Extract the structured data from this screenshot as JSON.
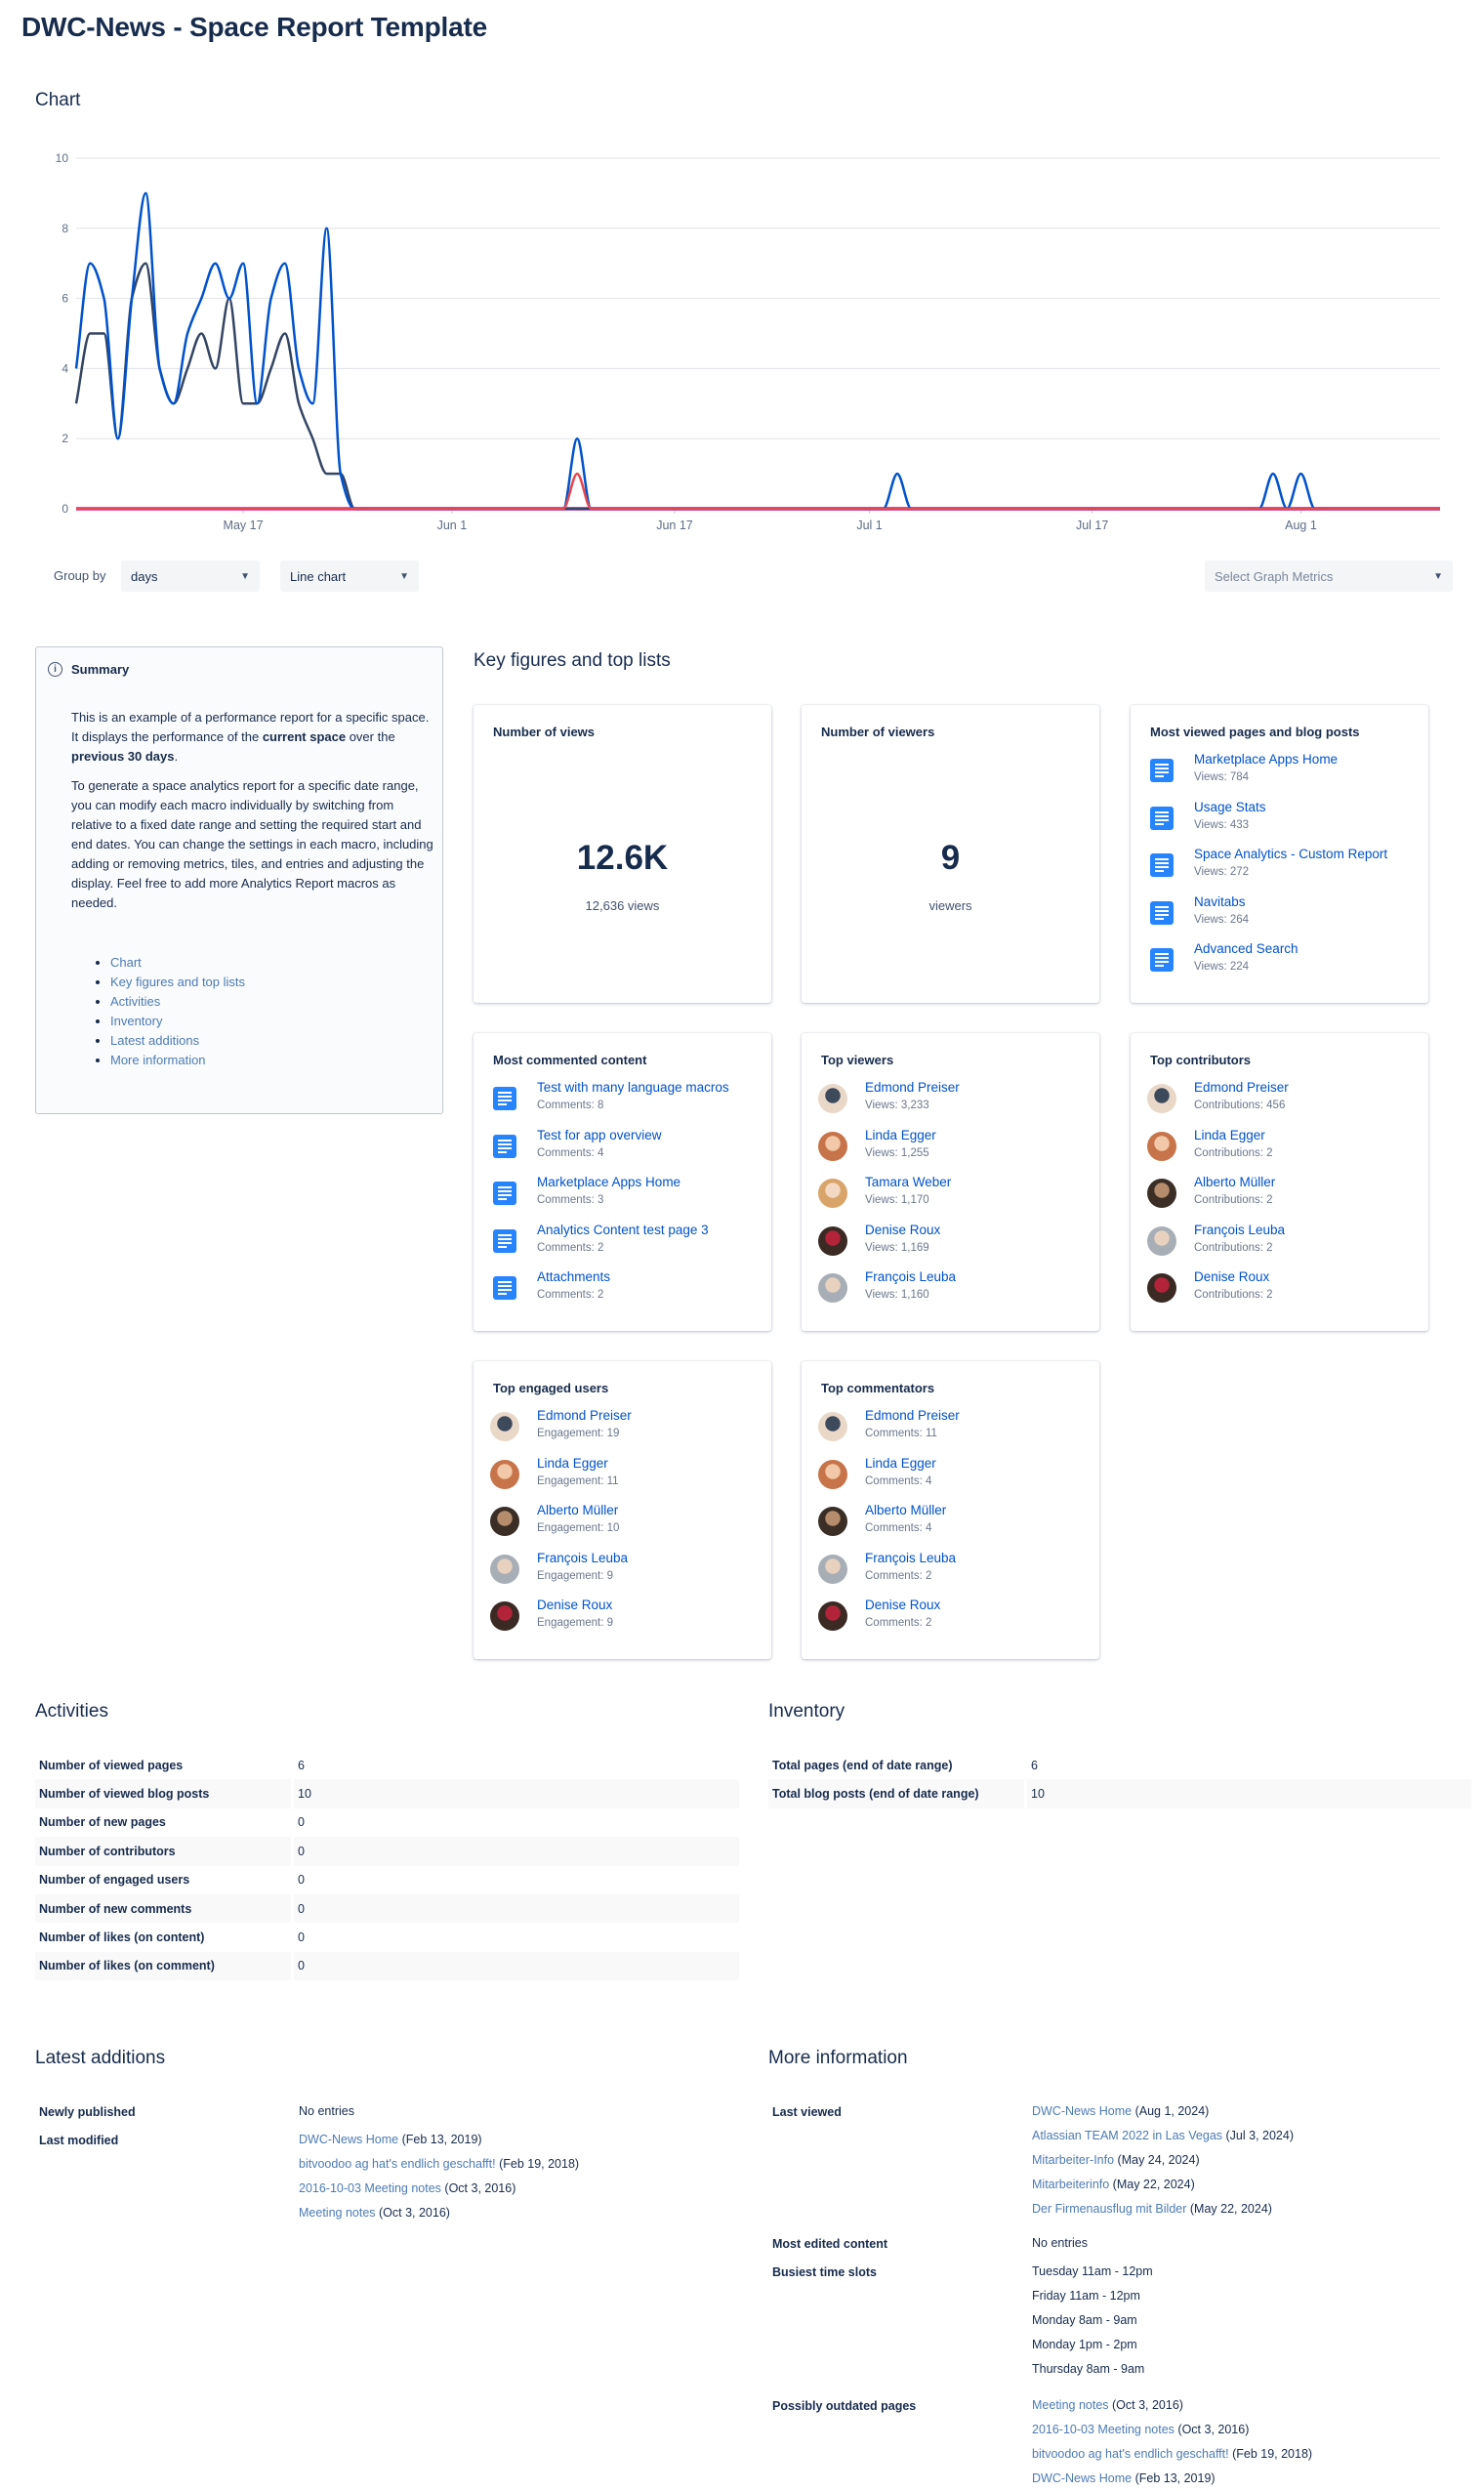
{
  "page": {
    "title": "DWC-News - Space Report Template"
  },
  "chart_section": {
    "heading": "Chart"
  },
  "chart_data": {
    "type": "line",
    "title": "",
    "xlabel": "",
    "ylabel": "",
    "ylim": [
      0,
      10
    ],
    "yticks": [
      "0",
      "2",
      "4",
      "6",
      "8",
      "10"
    ],
    "xlim": [
      "2024-05-05",
      "2024-08-11"
    ],
    "xticks": [
      {
        "date": "2024-05-17",
        "label": "May 17"
      },
      {
        "date": "2024-06-01",
        "label": "Jun 1"
      },
      {
        "date": "2024-06-17",
        "label": "Jun 17"
      },
      {
        "date": "2024-07-01",
        "label": "Jul 1"
      },
      {
        "date": "2024-07-17",
        "label": "Jul 17"
      },
      {
        "date": "2024-08-01",
        "label": "Aug 1"
      }
    ],
    "grid": true,
    "legend": "none",
    "series": [
      {
        "color": "#0052cc",
        "points": [
          [
            "2024-05-05",
            4
          ],
          [
            "2024-05-06",
            7
          ],
          [
            "2024-05-07",
            6
          ],
          [
            "2024-05-08",
            2
          ],
          [
            "2024-05-09",
            6
          ],
          [
            "2024-05-10",
            9
          ],
          [
            "2024-05-11",
            4
          ],
          [
            "2024-05-12",
            3
          ],
          [
            "2024-05-13",
            5
          ],
          [
            "2024-05-14",
            6
          ],
          [
            "2024-05-15",
            7
          ],
          [
            "2024-05-16",
            6
          ],
          [
            "2024-05-17",
            7
          ],
          [
            "2024-05-18",
            3
          ],
          [
            "2024-05-19",
            6
          ],
          [
            "2024-05-20",
            7
          ],
          [
            "2024-05-21",
            4
          ],
          [
            "2024-05-22",
            3
          ],
          [
            "2024-05-23",
            8
          ],
          [
            "2024-05-24",
            1
          ],
          [
            "2024-05-25",
            0
          ],
          [
            "2024-06-09",
            0
          ],
          [
            "2024-06-10",
            2
          ],
          [
            "2024-06-11",
            0
          ],
          [
            "2024-07-02",
            0
          ],
          [
            "2024-07-03",
            1
          ],
          [
            "2024-07-04",
            0
          ],
          [
            "2024-07-29",
            0
          ],
          [
            "2024-07-30",
            1
          ],
          [
            "2024-07-31",
            0
          ],
          [
            "2024-08-01",
            1
          ],
          [
            "2024-08-02",
            0
          ],
          [
            "2024-08-11",
            0
          ]
        ]
      },
      {
        "color": "#344563",
        "points": [
          [
            "2024-05-05",
            3
          ],
          [
            "2024-05-06",
            5
          ],
          [
            "2024-05-07",
            5
          ],
          [
            "2024-05-08",
            2
          ],
          [
            "2024-05-09",
            6
          ],
          [
            "2024-05-10",
            7
          ],
          [
            "2024-05-11",
            4
          ],
          [
            "2024-05-12",
            3
          ],
          [
            "2024-05-13",
            4
          ],
          [
            "2024-05-14",
            5
          ],
          [
            "2024-05-15",
            4
          ],
          [
            "2024-05-16",
            6
          ],
          [
            "2024-05-17",
            3
          ],
          [
            "2024-05-18",
            3
          ],
          [
            "2024-05-19",
            4
          ],
          [
            "2024-05-20",
            5
          ],
          [
            "2024-05-21",
            3
          ],
          [
            "2024-05-22",
            2
          ],
          [
            "2024-05-23",
            1
          ],
          [
            "2024-05-24",
            1
          ],
          [
            "2024-05-25",
            0
          ],
          [
            "2024-08-11",
            0
          ]
        ]
      },
      {
        "color": "#e5484d",
        "points": [
          [
            "2024-05-05",
            0
          ],
          [
            "2024-06-09",
            0
          ],
          [
            "2024-06-10",
            1
          ],
          [
            "2024-06-11",
            0
          ],
          [
            "2024-08-11",
            0
          ]
        ]
      },
      {
        "color": "#d65ce0",
        "points": [
          [
            "2024-05-05",
            0
          ],
          [
            "2024-08-11",
            0
          ]
        ]
      }
    ]
  },
  "controls": {
    "group_by_label": "Group by",
    "group_by_value": "days",
    "chart_type_value": "Line chart",
    "metrics_placeholder": "Select Graph Metrics"
  },
  "summary": {
    "title": "Summary",
    "p1_a": "This is an example of a performance report for a specific space. It displays the performance of the ",
    "p1_b": "current space",
    "p1_c": " over the ",
    "p1_d": "previous 30 days",
    "p1_e": ".",
    "p2": "To generate a space analytics report for a specific date range, you can modify each macro individually by switching from relative to a fixed date range and setting the required start and end dates. You can change the settings in each macro, including adding or removing metrics, tiles, and entries and adjusting the display. Feel free to add more Analytics Report macros as needed.",
    "links": [
      "Chart",
      "Key figures and top lists",
      "Activities",
      "Inventory",
      "Latest additions",
      "More information"
    ]
  },
  "key_figures": {
    "heading": "Key figures and top lists",
    "views": {
      "title": "Number of views",
      "value": "12.6K",
      "sub": "12,636 views"
    },
    "viewers": {
      "title": "Number of viewers",
      "value": "9",
      "sub": "viewers"
    },
    "lists": [
      {
        "title": "Most viewed pages and blog posts",
        "kind": "doc",
        "items": [
          {
            "name": "Marketplace Apps Home",
            "sub": "Views: 784"
          },
          {
            "name": "Usage Stats",
            "sub": "Views: 433"
          },
          {
            "name": "Space Analytics - Custom Report",
            "sub": "Views: 272"
          },
          {
            "name": "Navitabs",
            "sub": "Views: 264"
          },
          {
            "name": "Advanced Search",
            "sub": "Views: 224"
          }
        ]
      },
      {
        "title": "Most commented content",
        "kind": "doc",
        "items": [
          {
            "name": "Test with many language macros",
            "sub": "Comments: 8"
          },
          {
            "name": "Test for app overview",
            "sub": "Comments: 4"
          },
          {
            "name": "Marketplace Apps Home",
            "sub": "Comments: 3"
          },
          {
            "name": "Analytics Content test page 3",
            "sub": "Comments: 2"
          },
          {
            "name": "Attachments",
            "sub": "Comments: 2"
          }
        ]
      },
      {
        "title": "Top viewers",
        "kind": "user",
        "items": [
          {
            "name": "Edmond Preiser",
            "sub": "Views: 3,233"
          },
          {
            "name": "Linda Egger",
            "sub": "Views: 1,255"
          },
          {
            "name": "Tamara Weber",
            "sub": "Views: 1,170"
          },
          {
            "name": "Denise Roux",
            "sub": "Views: 1,169"
          },
          {
            "name": "François Leuba",
            "sub": "Views: 1,160"
          }
        ]
      },
      {
        "title": "Top contributors",
        "kind": "user",
        "items": [
          {
            "name": "Edmond Preiser",
            "sub": "Contributions: 456"
          },
          {
            "name": "Linda Egger",
            "sub": "Contributions: 2"
          },
          {
            "name": "Alberto Müller",
            "sub": "Contributions: 2"
          },
          {
            "name": "François Leuba",
            "sub": "Contributions: 2"
          },
          {
            "name": "Denise Roux",
            "sub": "Contributions: 2"
          }
        ]
      },
      {
        "title": "Top engaged users",
        "kind": "user",
        "items": [
          {
            "name": "Edmond Preiser",
            "sub": "Engagement: 19"
          },
          {
            "name": "Linda Egger",
            "sub": "Engagement: 11"
          },
          {
            "name": "Alberto Müller",
            "sub": "Engagement: 10"
          },
          {
            "name": "François Leuba",
            "sub": "Engagement: 9"
          },
          {
            "name": "Denise Roux",
            "sub": "Engagement: 9"
          }
        ]
      },
      {
        "title": "Top commentators",
        "kind": "user",
        "items": [
          {
            "name": "Edmond Preiser",
            "sub": "Comments: 11"
          },
          {
            "name": "Linda Egger",
            "sub": "Comments: 4"
          },
          {
            "name": "Alberto Müller",
            "sub": "Comments: 4"
          },
          {
            "name": "François Leuba",
            "sub": "Comments: 2"
          },
          {
            "name": "Denise Roux",
            "sub": "Comments: 2"
          }
        ]
      }
    ]
  },
  "activities": {
    "heading": "Activities",
    "rows": [
      {
        "label": "Number of viewed pages",
        "value": "6"
      },
      {
        "label": "Number of viewed blog posts",
        "value": "10"
      },
      {
        "label": "Number of new pages",
        "value": "0"
      },
      {
        "label": "Number of contributors",
        "value": "0"
      },
      {
        "label": "Number of engaged users",
        "value": "0"
      },
      {
        "label": "Number of new comments",
        "value": "0"
      },
      {
        "label": "Number of likes (on content)",
        "value": "0"
      },
      {
        "label": "Number of likes (on comment)",
        "value": "0"
      }
    ]
  },
  "inventory": {
    "heading": "Inventory",
    "rows": [
      {
        "label": "Total pages (end of date range)",
        "value": "6"
      },
      {
        "label": "Total blog posts (end of date range)",
        "value": "10"
      }
    ]
  },
  "latest_additions": {
    "heading": "Latest additions",
    "newly_published_label": "Newly published",
    "newly_published_value": "No entries",
    "last_modified_label": "Last modified",
    "last_modified": [
      {
        "link": "DWC-News Home",
        "date": " (Feb 13, 2019)"
      },
      {
        "link": "bitvoodoo ag hat's endlich geschafft!",
        "date": " (Feb 19, 2018)"
      },
      {
        "link": "2016-10-03 Meeting notes",
        "date": " (Oct 3, 2016)"
      },
      {
        "link": "Meeting notes",
        "date": " (Oct 3, 2016)"
      }
    ]
  },
  "more_information": {
    "heading": "More information",
    "last_viewed_label": "Last viewed",
    "last_viewed": [
      {
        "link": "DWC-News Home",
        "date": " (Aug 1, 2024)"
      },
      {
        "link": "Atlassian TEAM 2022 in Las Vegas",
        "date": " (Jul 3, 2024)"
      },
      {
        "link": "Mitarbeiter-Info",
        "date": " (May 24, 2024)"
      },
      {
        "link": "Mitarbeiterinfo",
        "date": " (May 22, 2024)"
      },
      {
        "link": "Der Firmenausflug mit Bilder",
        "date": " (May 22, 2024)"
      }
    ],
    "most_edited_label": "Most edited content",
    "most_edited_value": "No entries",
    "busiest_label": "Busiest time slots",
    "busiest": [
      "Tuesday 11am - 12pm",
      "Friday 11am - 12pm",
      "Monday 8am - 9am",
      "Monday 1pm - 2pm",
      "Thursday 8am - 9am"
    ],
    "outdated_label": "Possibly outdated pages",
    "outdated": [
      {
        "link": "Meeting notes",
        "date": " (Oct 3, 2016)"
      },
      {
        "link": "2016-10-03 Meeting notes",
        "date": " (Oct 3, 2016)"
      },
      {
        "link": "bitvoodoo ag hat's endlich geschafft!",
        "date": " (Feb 19, 2018)"
      },
      {
        "link": "DWC-News Home",
        "date": " (Feb 13, 2019)"
      }
    ]
  }
}
